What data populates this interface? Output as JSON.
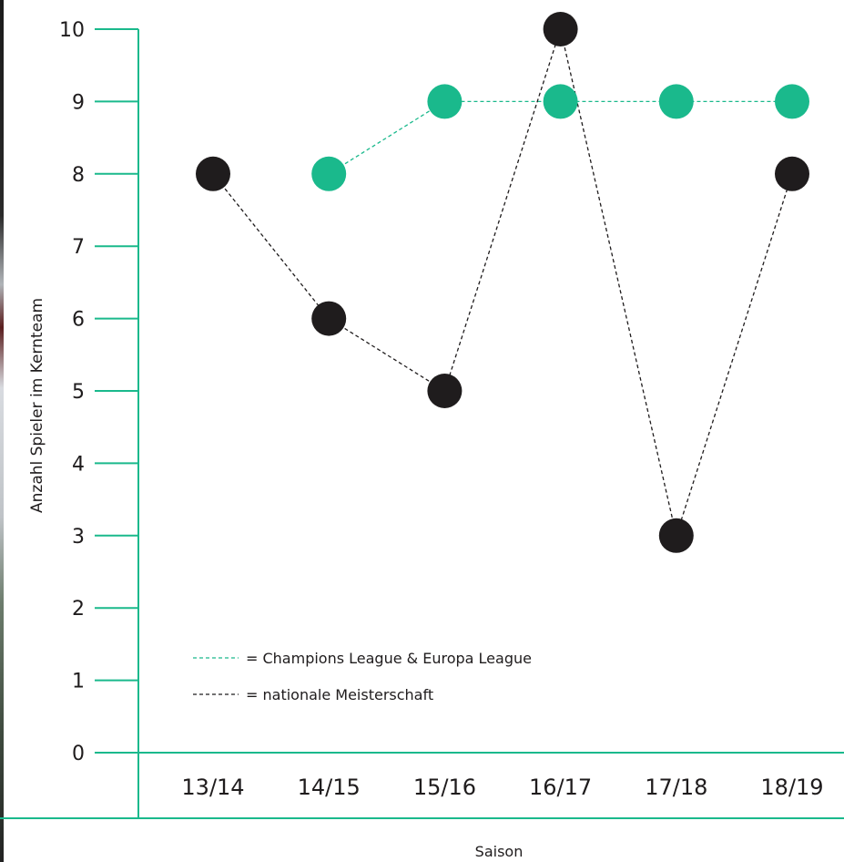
{
  "chart_data": {
    "type": "line",
    "categories": [
      "13/14",
      "14/15",
      "15/16",
      "16/17",
      "17/18",
      "18/19"
    ],
    "series": [
      {
        "name": "= Champions League & Europa League",
        "values": [
          null,
          8,
          9,
          9,
          9,
          9
        ],
        "color": "#1ab98c"
      },
      {
        "name": "= nationale Meisterschaft",
        "values": [
          8,
          6,
          5,
          10,
          3,
          8
        ],
        "color": "#1f1c1d"
      }
    ],
    "xlabel": "Saison",
    "ylabel": "Anzahl Spieler im Kernteam",
    "ylim": [
      0,
      10
    ],
    "yticks": [
      0,
      1,
      2,
      3,
      4,
      5,
      6,
      7,
      8,
      9,
      10
    ],
    "grid": false,
    "legend_position": "bottom-left",
    "axis_color": "#1ab98c"
  }
}
